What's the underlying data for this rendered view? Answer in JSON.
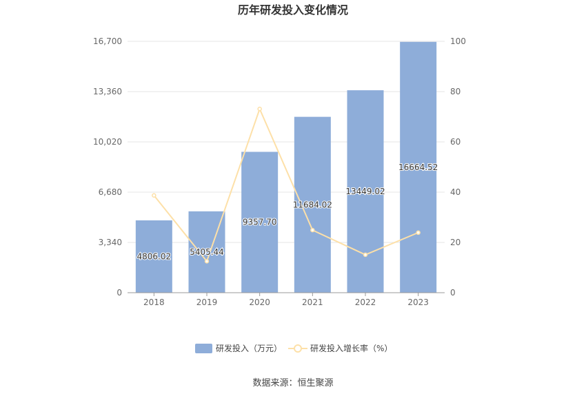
{
  "chart_data": {
    "type": "bar",
    "title": "历年研发投入变化情况",
    "categories": [
      "2018",
      "2019",
      "2020",
      "2021",
      "2022",
      "2023"
    ],
    "series": [
      {
        "name": "研发投入（万元）",
        "type": "bar",
        "axis": "left",
        "color": "#8eadd9",
        "values": [
          4806.02,
          5405.44,
          9357.7,
          11684.02,
          13449.02,
          16664.52
        ],
        "labels": [
          "4806.02",
          "5405.44",
          "9357.70",
          "11684.02",
          "13449.02",
          "16664.52"
        ]
      },
      {
        "name": "研发投入增长率（%）",
        "type": "line",
        "axis": "right",
        "color": "#fde0a8",
        "values": [
          38.7,
          12.5,
          73.1,
          24.9,
          15.1,
          23.9
        ]
      }
    ],
    "left_axis": {
      "ylim": [
        0,
        16700
      ],
      "ticks": [
        "0",
        "3,340",
        "6,680",
        "10,020",
        "13,360",
        "16,700"
      ]
    },
    "right_axis": {
      "ylim": [
        0,
        100
      ],
      "ticks": [
        "0",
        "20",
        "40",
        "60",
        "80",
        "100"
      ]
    },
    "grid": true,
    "legend": "bottom-center"
  },
  "source": "数据来源：恒生聚源"
}
